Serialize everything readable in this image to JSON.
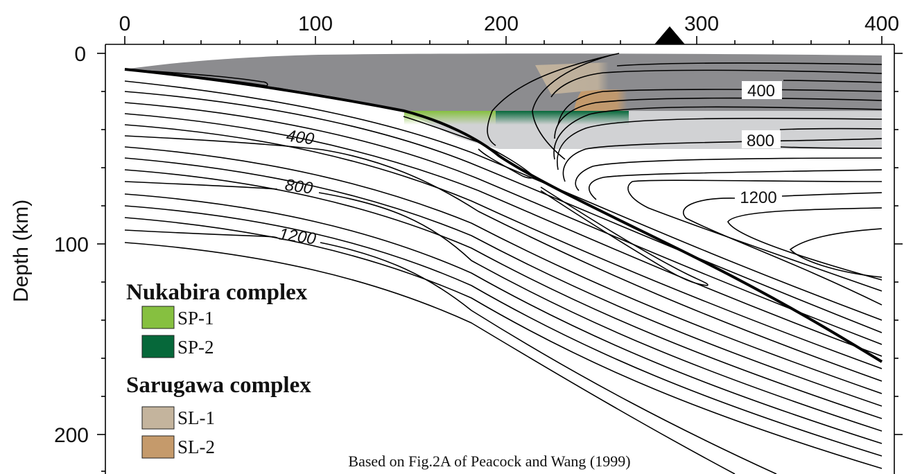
{
  "x_axis": {
    "tick_labels": [
      "0",
      "100",
      "200",
      "300",
      "400"
    ]
  },
  "y_axis": {
    "label": "Depth (km)",
    "tick_labels": [
      "0",
      "100",
      "200"
    ]
  },
  "contour_labels": {
    "slab_400": "400",
    "slab_800": "800",
    "slab_1200": "1200",
    "wedge_400": "400",
    "wedge_800": "800",
    "wedge_1200": "1200"
  },
  "legend": {
    "groups": [
      {
        "title": "Nukabira complex",
        "items": [
          {
            "label": "SP-1",
            "color": "#86c040"
          },
          {
            "label": "SP-2",
            "color": "#06683a"
          }
        ]
      },
      {
        "title": "Sarugawa complex",
        "items": [
          {
            "label": "SL-1",
            "color": "#c4b49d"
          },
          {
            "label": "SL-2",
            "color": "#c59a6b"
          }
        ]
      }
    ]
  },
  "credit": "Based on Fig.2A of Peacock and Wang (1999)",
  "colors": {
    "crust_dark_gray": "#8c8c8f",
    "lower_light_gray": "#d1d2d4",
    "volcanic_front_marker": "#000000"
  },
  "icons": {
    "volcanic_front": "triangle-marker-icon"
  }
}
